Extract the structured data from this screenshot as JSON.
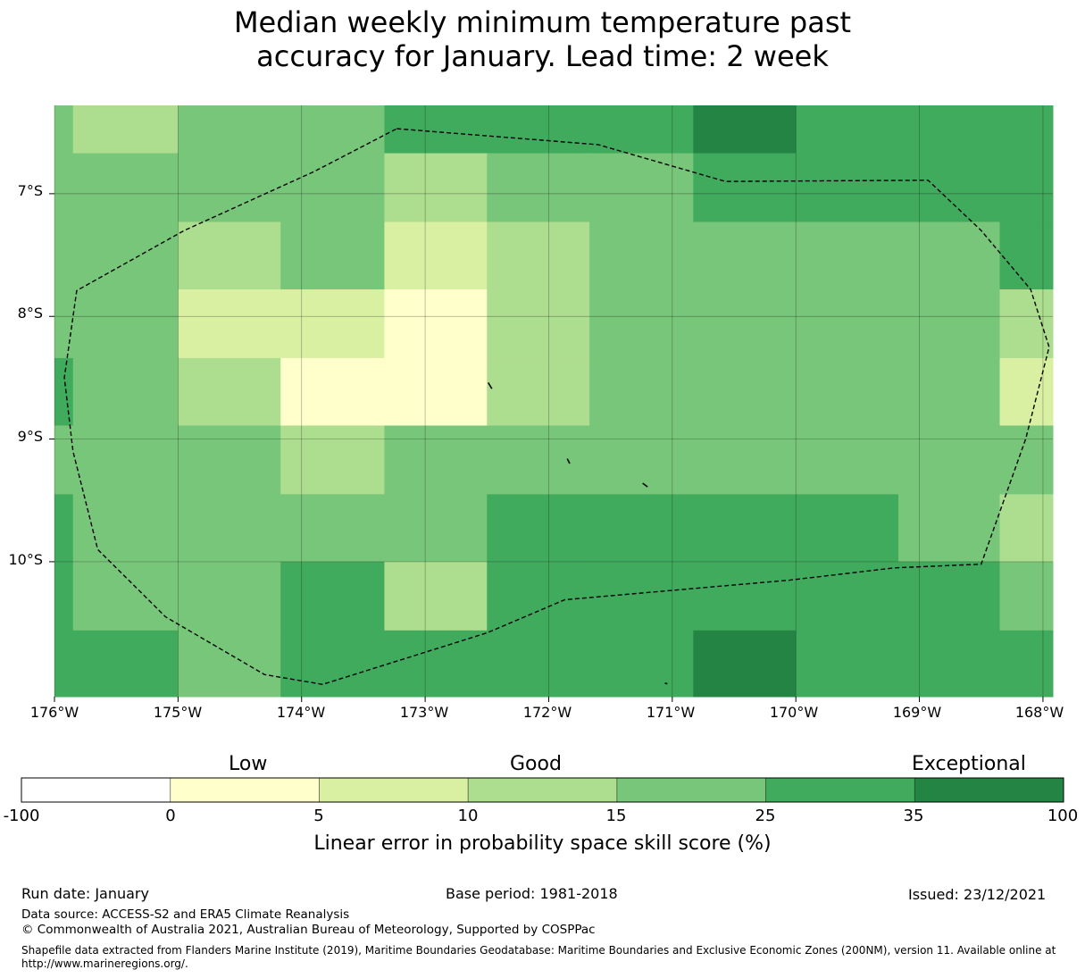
{
  "title": {
    "line1": "Median weekly minimum temperature past",
    "line2": "accuracy for January. Lead time: 2 week"
  },
  "map": {
    "lat_labels": [
      "7°S",
      "8°S",
      "9°S",
      "10°S"
    ],
    "lon_labels": [
      "176°W",
      "175°W",
      "174°W",
      "173°W",
      "172°W",
      "171°W",
      "170°W",
      "169°W",
      "168°W"
    ],
    "grid_lon_edges": [
      -176,
      -175.85,
      -175,
      -174.17,
      -173.33,
      -172.5,
      -171.67,
      -170.83,
      -170,
      -169.17,
      -168.35,
      -167.92
    ],
    "grid_lat_edges": [
      -6.28,
      -6.67,
      -7.23,
      -7.78,
      -8.34,
      -8.89,
      -9.45,
      -10.0,
      -10.56,
      -11.1
    ],
    "cells": [
      [
        16,
        12,
        16,
        16,
        30,
        30,
        30,
        40,
        30,
        30,
        30
      ],
      [
        16,
        16,
        16,
        16,
        12,
        16,
        16,
        30,
        30,
        30,
        30
      ],
      [
        16,
        16,
        12,
        16,
        7,
        12,
        16,
        16,
        16,
        16,
        30
      ],
      [
        16,
        16,
        7,
        7,
        2,
        12,
        16,
        16,
        16,
        16,
        12
      ],
      [
        30,
        16,
        12,
        2,
        2,
        12,
        16,
        16,
        16,
        16,
        7
      ],
      [
        16,
        16,
        16,
        12,
        16,
        16,
        16,
        16,
        16,
        16,
        16
      ],
      [
        30,
        16,
        16,
        16,
        16,
        30,
        30,
        30,
        30,
        16,
        12
      ],
      [
        30,
        16,
        16,
        30,
        12,
        30,
        30,
        30,
        30,
        30,
        16
      ],
      [
        30,
        30,
        16,
        30,
        30,
        30,
        30,
        40,
        30,
        30,
        30
      ]
    ],
    "eez_boundary_lonlat": [
      [
        -173.23,
        -6.47
      ],
      [
        -171.6,
        -6.6
      ],
      [
        -170.57,
        -6.9
      ],
      [
        -168.93,
        -6.89
      ],
      [
        -168.5,
        -7.3
      ],
      [
        -168.1,
        -7.78
      ],
      [
        -167.95,
        -8.25
      ],
      [
        -168.14,
        -9.0
      ],
      [
        -168.5,
        -10.02
      ],
      [
        -169.2,
        -10.05
      ],
      [
        -170.05,
        -10.15
      ],
      [
        -171.87,
        -10.31
      ],
      [
        -172.5,
        -10.58
      ],
      [
        -173.83,
        -11.0
      ],
      [
        -174.3,
        -10.92
      ],
      [
        -175.1,
        -10.45
      ],
      [
        -175.65,
        -9.9
      ],
      [
        -175.85,
        -9.1
      ],
      [
        -175.92,
        -8.5
      ],
      [
        -175.82,
        -7.79
      ],
      [
        -174.95,
        -7.3
      ],
      [
        -173.9,
        -6.82
      ]
    ],
    "islands_lonlat": [
      [
        [
          -172.49,
          -8.54
        ],
        [
          -172.46,
          -8.59
        ]
      ],
      [
        [
          -171.85,
          -9.16
        ],
        [
          -171.83,
          -9.2
        ]
      ],
      [
        [
          -171.24,
          -9.36
        ],
        [
          -171.2,
          -9.39
        ]
      ],
      [
        [
          -171.06,
          -10.99
        ],
        [
          -171.04,
          -10.995
        ]
      ]
    ]
  },
  "legend": {
    "categories": [
      "Low",
      "Good",
      "Exceptional"
    ],
    "ticks": [
      "-100",
      "0",
      "5",
      "10",
      "15",
      "25",
      "35",
      "100"
    ],
    "colors": [
      "#ffffff",
      "#ffffcc",
      "#d9f0a3",
      "#addd8e",
      "#78c679",
      "#41ab5d",
      "#238443"
    ],
    "label": "Linear error in probability space skill score (%)"
  },
  "footer": {
    "run_date": "Run date: January",
    "base_period": "Base period: 1981-2018",
    "issued": "Issued: 23/12/2021",
    "data_source": "Data source: ACCESS-S2 and ERA5 Climate Reanalysis",
    "copyright": "© Commonwealth of Australia 2021, Australian Bureau of Meteorology, Supported by COSPPac",
    "shapefile": "Shapefile data extracted from Flanders Marine Institute (2019), Maritime Boundaries Geodatabase: Maritime Boundaries and Exclusive Economic Zones (200NM), version 11. Available online at http://www.marineregions.org/."
  }
}
